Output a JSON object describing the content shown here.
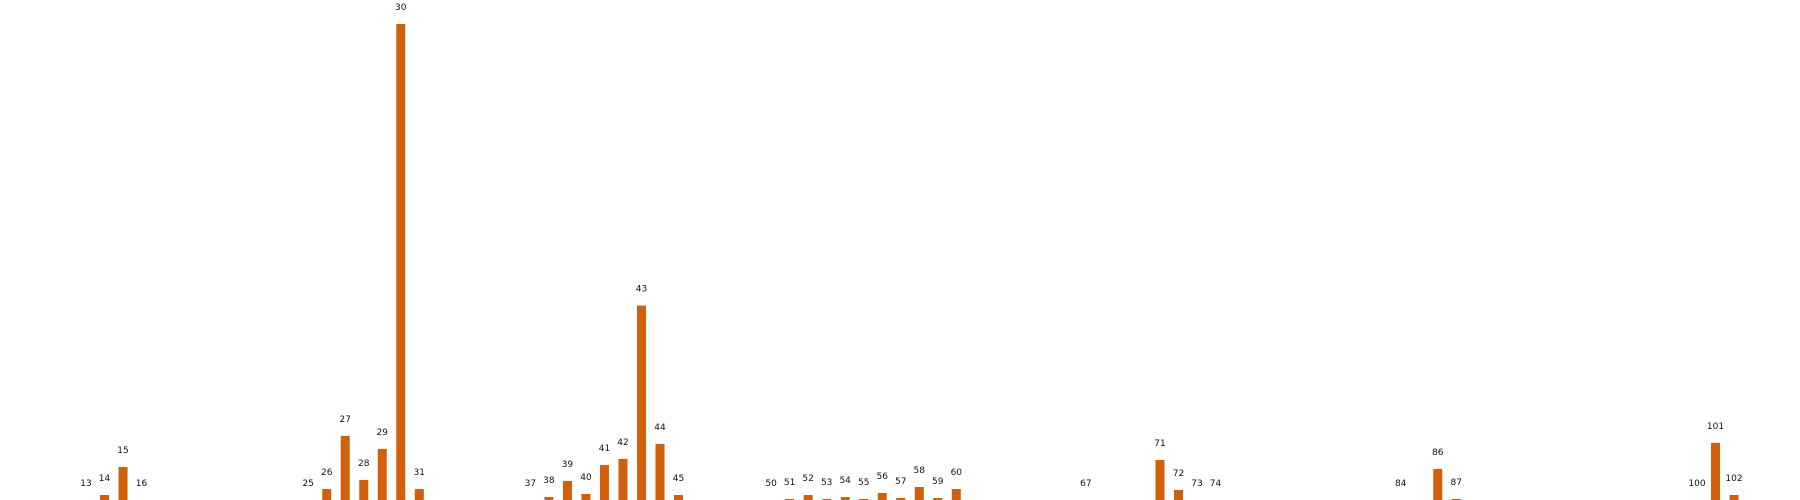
{
  "chart_data": {
    "type": "bar",
    "title": "",
    "xlabel": "",
    "ylabel": "",
    "grid": false,
    "legend": "none",
    "color": "#D2600A",
    "ylim": [
      0,
      475
    ],
    "categories": [
      "13",
      "14",
      "15",
      "16",
      "25",
      "26",
      "27",
      "28",
      "29",
      "30",
      "31",
      "37",
      "38",
      "39",
      "40",
      "41",
      "42",
      "43",
      "44",
      "45",
      "50",
      "51",
      "52",
      "53",
      "54",
      "55",
      "56",
      "57",
      "58",
      "59",
      "60",
      "67",
      "71",
      "72",
      "73",
      "74",
      "84",
      "86",
      "87",
      "100",
      "101",
      "102"
    ],
    "x": [
      13,
      14,
      15,
      16,
      25,
      26,
      27,
      28,
      29,
      30,
      31,
      37,
      38,
      39,
      40,
      41,
      42,
      43,
      44,
      45,
      50,
      51,
      52,
      53,
      54,
      55,
      56,
      57,
      58,
      59,
      60,
      67,
      71,
      72,
      73,
      74,
      84,
      86,
      87,
      100,
      101,
      102
    ],
    "series": [
      {
        "values": [
          0,
          5,
          33,
          0,
          0,
          11,
          64,
          20,
          51,
          475,
          11,
          0,
          3,
          19,
          6,
          35,
          41,
          194,
          56,
          5,
          0,
          1,
          5,
          1,
          3,
          1,
          7,
          2,
          13,
          2,
          11,
          0,
          40,
          10,
          0,
          0,
          0,
          31,
          1,
          0,
          57,
          5
        ]
      }
    ]
  }
}
